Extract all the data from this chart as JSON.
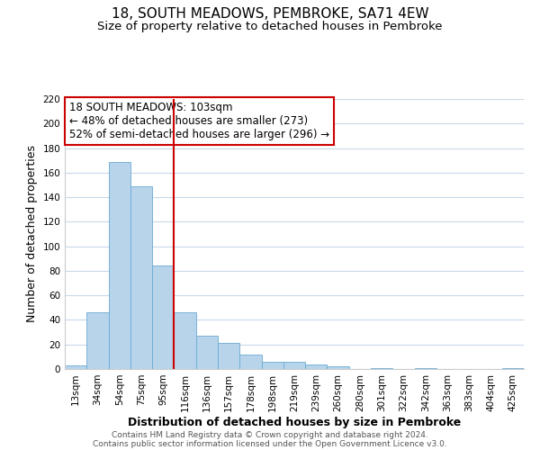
{
  "title": "18, SOUTH MEADOWS, PEMBROKE, SA71 4EW",
  "subtitle": "Size of property relative to detached houses in Pembroke",
  "xlabel": "Distribution of detached houses by size in Pembroke",
  "ylabel": "Number of detached properties",
  "bar_labels": [
    "13sqm",
    "34sqm",
    "54sqm",
    "75sqm",
    "95sqm",
    "116sqm",
    "136sqm",
    "157sqm",
    "178sqm",
    "198sqm",
    "219sqm",
    "239sqm",
    "260sqm",
    "280sqm",
    "301sqm",
    "322sqm",
    "342sqm",
    "363sqm",
    "383sqm",
    "404sqm",
    "425sqm"
  ],
  "bar_values": [
    3,
    46,
    169,
    149,
    84,
    46,
    27,
    21,
    12,
    6,
    6,
    4,
    2,
    0,
    1,
    0,
    1,
    0,
    0,
    0,
    1
  ],
  "bar_color": "#b8d4ea",
  "bar_edge_color": "#6aaad4",
  "vline_x_idx": 5,
  "vline_color": "#cc0000",
  "ylim": [
    0,
    220
  ],
  "yticks": [
    0,
    20,
    40,
    60,
    80,
    100,
    120,
    140,
    160,
    180,
    200,
    220
  ],
  "annotation_title": "18 SOUTH MEADOWS: 103sqm",
  "annotation_line1": "← 48% of detached houses are smaller (273)",
  "annotation_line2": "52% of semi-detached houses are larger (296) →",
  "footer1": "Contains HM Land Registry data © Crown copyright and database right 2024.",
  "footer2": "Contains public sector information licensed under the Open Government Licence v3.0.",
  "background_color": "#ffffff",
  "grid_color": "#c8d8e8",
  "title_fontsize": 11,
  "subtitle_fontsize": 9.5,
  "axis_label_fontsize": 9,
  "tick_fontsize": 7.5,
  "annotation_fontsize": 8.5,
  "footer_fontsize": 6.5
}
